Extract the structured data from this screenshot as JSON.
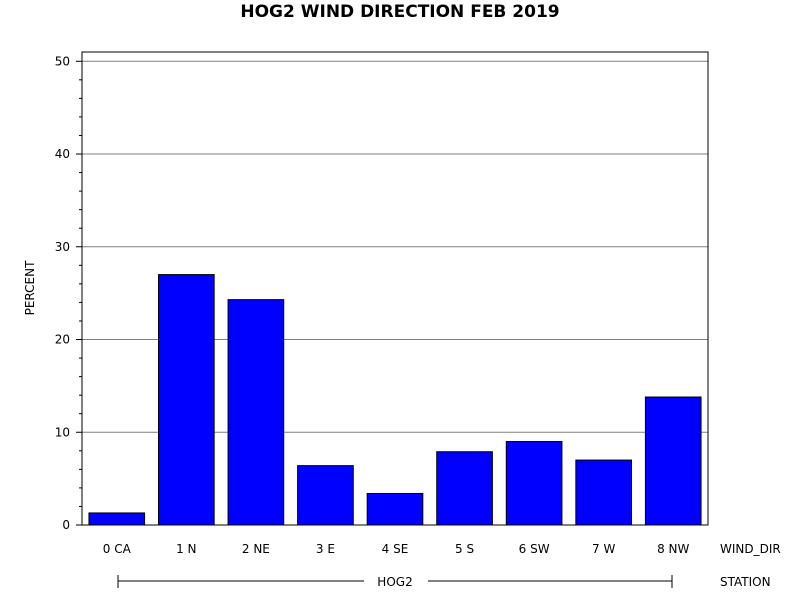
{
  "chart_data": {
    "type": "bar",
    "title": "HOG2 WIND DIRECTION FEB 2019",
    "ylabel": "PERCENT",
    "ylim": [
      0,
      51
    ],
    "yticks": [
      0,
      10,
      20,
      30,
      40,
      50
    ],
    "grid": true,
    "categories": [
      "0 CA",
      "1 N",
      "2 NE",
      "3 E",
      "4 SE",
      "5 S",
      "6 SW",
      "7 W",
      "8 NW"
    ],
    "values": [
      1.3,
      27.0,
      24.3,
      6.4,
      3.4,
      7.9,
      9.0,
      7.0,
      13.8
    ],
    "bar_color": "#0000ff",
    "category_axis_label": "WIND_DIR",
    "group_axis_label": "STATION",
    "group_label": "HOG2"
  }
}
